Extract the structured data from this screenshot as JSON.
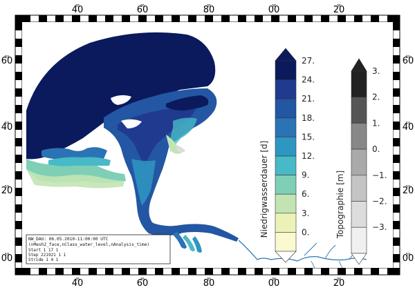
{
  "map": {
    "top_ticks": [
      "40",
      "60",
      "80",
      "00",
      "20"
    ],
    "top_ticks_super": [
      "35",
      "35",
      "35",
      "36",
      "36"
    ],
    "bottom_ticks": [
      "40",
      "60",
      "80",
      "00",
      "20"
    ],
    "bottom_ticks_super": [
      "35",
      "35",
      "35",
      "36",
      "36"
    ],
    "left_ticks": [
      "60",
      "40",
      "20",
      "00"
    ],
    "left_ticks_super": [
      "59",
      "59",
      "59",
      "59"
    ],
    "right_ticks": [
      "60",
      "40",
      "20",
      "00"
    ],
    "right_ticks_super": [
      "59",
      "59",
      "59",
      "59"
    ]
  },
  "colorbar_main": {
    "title": "Niedrigwasserdauer [d]",
    "labels": [
      "27.",
      "24.",
      "21.",
      "18.",
      "15.",
      "12.",
      "9.",
      "6.",
      "3.",
      "0."
    ],
    "colors": [
      "#0b1a5c",
      "#1f3a8f",
      "#2356a3",
      "#2a73b4",
      "#2f96c2",
      "#48b9c6",
      "#7fcfb7",
      "#c2e4b4",
      "#eaf2b8",
      "#fbf9cf"
    ]
  },
  "colorbar_topo": {
    "title": "Topographie [m]",
    "labels": [
      "3.",
      "2.",
      "1.",
      "0.",
      "−1.",
      "−2.",
      "−3."
    ],
    "colors": [
      "#222222",
      "#555555",
      "#888888",
      "#aaaaaa",
      "#c4c4c4",
      "#dcdcdc",
      "#f0f0f0"
    ]
  },
  "info_box": {
    "line1": "NW_DAU: 06.05.2010-11:00:00 UTC",
    "line2": "(nMesh2_face,nClass_water_level,nAnalysis_time)",
    "line3": "Start       1        17        1",
    "line4": "Step    221921        1        1",
    "line5": "Stride      1         4        1"
  }
}
